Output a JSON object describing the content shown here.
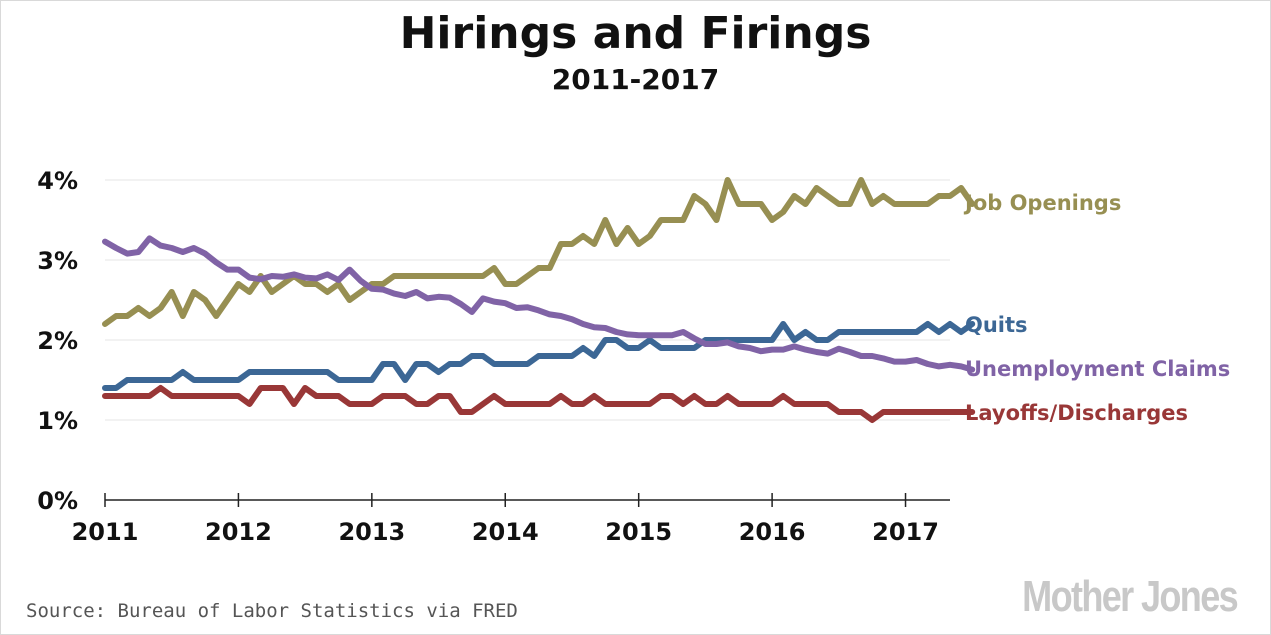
{
  "header": {
    "title": "Hirings and Firings",
    "subtitle": "2011-2017"
  },
  "footer": {
    "source": "Source: Bureau of Labor Statistics via FRED",
    "logo": "Mother Jones"
  },
  "chart_data": {
    "type": "line",
    "x_unit": "month",
    "x_start": "2011-01",
    "x_end": "2017-05",
    "x_ticks": [
      "2011",
      "2012",
      "2013",
      "2014",
      "2015",
      "2016",
      "2017"
    ],
    "y_ticks": [
      "0%",
      "1%",
      "2%",
      "3%",
      "4%"
    ],
    "ylim": [
      0,
      4.0
    ],
    "grid": true,
    "legend": "right-end labels",
    "series": [
      {
        "name": "Job Openings",
        "color": "#978f52",
        "values": [
          2.2,
          2.3,
          2.3,
          2.4,
          2.3,
          2.4,
          2.6,
          2.3,
          2.6,
          2.5,
          2.3,
          2.5,
          2.7,
          2.6,
          2.8,
          2.6,
          2.7,
          2.8,
          2.7,
          2.7,
          2.6,
          2.7,
          2.5,
          2.6,
          2.7,
          2.7,
          2.8,
          2.8,
          2.8,
          2.8,
          2.8,
          2.8,
          2.8,
          2.8,
          2.8,
          2.9,
          2.7,
          2.7,
          2.8,
          2.9,
          2.9,
          3.2,
          3.2,
          3.3,
          3.2,
          3.5,
          3.2,
          3.4,
          3.2,
          3.3,
          3.5,
          3.5,
          3.5,
          3.8,
          3.7,
          3.5,
          4.0,
          3.7,
          3.7,
          3.7,
          3.5,
          3.6,
          3.8,
          3.7,
          3.9,
          3.8,
          3.7,
          3.7,
          4.0,
          3.7,
          3.8,
          3.7,
          3.7,
          3.7,
          3.7,
          3.8,
          3.8,
          3.9,
          3.7
        ]
      },
      {
        "name": "Quits",
        "color": "#3c6795",
        "values": [
          1.4,
          1.4,
          1.5,
          1.5,
          1.5,
          1.5,
          1.5,
          1.6,
          1.5,
          1.5,
          1.5,
          1.5,
          1.5,
          1.6,
          1.6,
          1.6,
          1.6,
          1.6,
          1.6,
          1.6,
          1.6,
          1.5,
          1.5,
          1.5,
          1.5,
          1.7,
          1.7,
          1.5,
          1.7,
          1.7,
          1.6,
          1.7,
          1.7,
          1.8,
          1.8,
          1.7,
          1.7,
          1.7,
          1.7,
          1.8,
          1.8,
          1.8,
          1.8,
          1.9,
          1.8,
          2.0,
          2.0,
          1.9,
          1.9,
          2.0,
          1.9,
          1.9,
          1.9,
          1.9,
          2.0,
          2.0,
          2.0,
          2.0,
          2.0,
          2.0,
          2.0,
          2.2,
          2.0,
          2.1,
          2.0,
          2.0,
          2.1,
          2.1,
          2.1,
          2.1,
          2.1,
          2.1,
          2.1,
          2.1,
          2.2,
          2.1,
          2.2,
          2.1,
          2.2
        ]
      },
      {
        "name": "Unemployment Claims",
        "color": "#8063a6",
        "values": [
          3.23,
          3.15,
          3.08,
          3.1,
          3.27,
          3.18,
          3.15,
          3.1,
          3.15,
          3.08,
          2.97,
          2.88,
          2.88,
          2.78,
          2.76,
          2.8,
          2.79,
          2.82,
          2.78,
          2.77,
          2.82,
          2.75,
          2.88,
          2.74,
          2.64,
          2.63,
          2.58,
          2.55,
          2.6,
          2.52,
          2.54,
          2.53,
          2.45,
          2.35,
          2.52,
          2.48,
          2.46,
          2.4,
          2.41,
          2.37,
          2.32,
          2.3,
          2.26,
          2.2,
          2.16,
          2.15,
          2.1,
          2.07,
          2.06,
          2.06,
          2.06,
          2.06,
          2.1,
          2.02,
          1.95,
          1.95,
          1.97,
          1.92,
          1.9,
          1.86,
          1.88,
          1.88,
          1.92,
          1.88,
          1.85,
          1.83,
          1.89,
          1.85,
          1.8,
          1.8,
          1.77,
          1.73,
          1.73,
          1.75,
          1.7,
          1.67,
          1.69,
          1.67,
          1.63
        ]
      },
      {
        "name": "Layoffs/Discharges",
        "color": "#993737",
        "values": [
          1.3,
          1.3,
          1.3,
          1.3,
          1.3,
          1.4,
          1.3,
          1.3,
          1.3,
          1.3,
          1.3,
          1.3,
          1.3,
          1.2,
          1.4,
          1.4,
          1.4,
          1.2,
          1.4,
          1.3,
          1.3,
          1.3,
          1.2,
          1.2,
          1.2,
          1.3,
          1.3,
          1.3,
          1.2,
          1.2,
          1.3,
          1.3,
          1.1,
          1.1,
          1.2,
          1.3,
          1.2,
          1.2,
          1.2,
          1.2,
          1.2,
          1.3,
          1.2,
          1.2,
          1.3,
          1.2,
          1.2,
          1.2,
          1.2,
          1.2,
          1.3,
          1.3,
          1.2,
          1.3,
          1.2,
          1.2,
          1.3,
          1.2,
          1.2,
          1.2,
          1.2,
          1.3,
          1.2,
          1.2,
          1.2,
          1.2,
          1.1,
          1.1,
          1.1,
          1.0,
          1.1,
          1.1,
          1.1,
          1.1,
          1.1,
          1.1,
          1.1,
          1.1,
          1.1
        ]
      }
    ]
  }
}
